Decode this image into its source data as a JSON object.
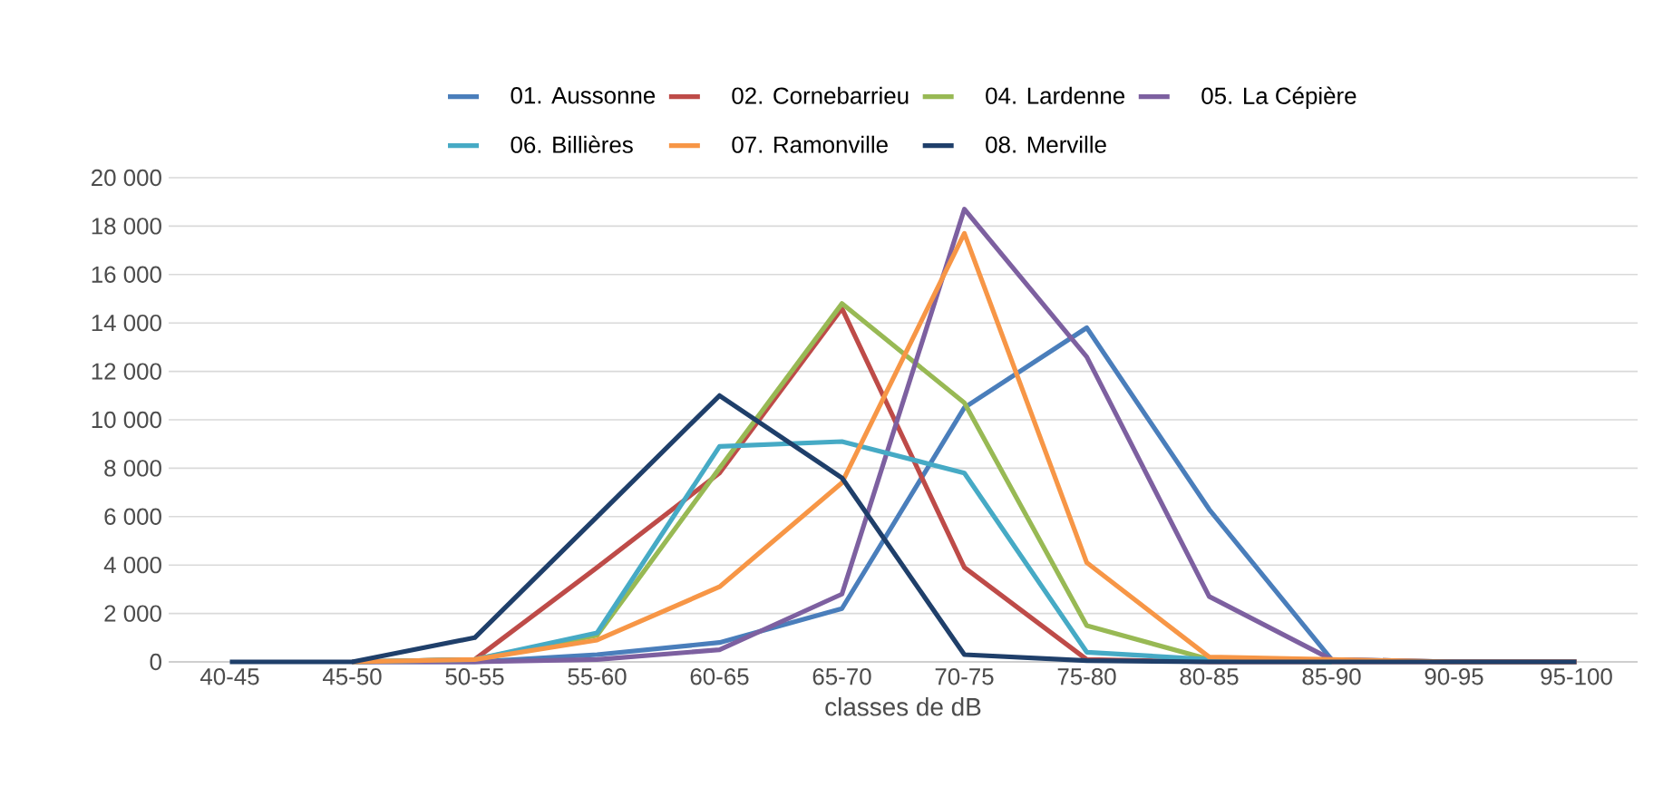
{
  "chart_data": {
    "type": "line",
    "xlabel": "classes de dB",
    "categories": [
      "40-45",
      "45-50",
      "50-55",
      "55-60",
      "60-65",
      "65-70",
      "70-75",
      "75-80",
      "80-85",
      "85-90",
      "90-95",
      "95-100"
    ],
    "ylim": [
      0,
      20000
    ],
    "yticks": [
      {
        "value": 0,
        "label": "0"
      },
      {
        "value": 2000,
        "label": "2 000"
      },
      {
        "value": 4000,
        "label": "4 000"
      },
      {
        "value": 6000,
        "label": "6 000"
      },
      {
        "value": 8000,
        "label": "8 000"
      },
      {
        "value": 10000,
        "label": "10 000"
      },
      {
        "value": 12000,
        "label": "12 000"
      },
      {
        "value": 14000,
        "label": "14 000"
      },
      {
        "value": 16000,
        "label": "16 000"
      },
      {
        "value": 18000,
        "label": "18 000"
      },
      {
        "value": 20000,
        "label": "20 000"
      }
    ],
    "grid": "y",
    "legend": "top",
    "marker": "none",
    "line_style": "solid",
    "series": [
      {
        "name": "01. Aussonne",
        "color": "#4a7ebb",
        "values": [
          null,
          0,
          0,
          300,
          800,
          2200,
          10500,
          13800,
          6300,
          100,
          0,
          0
        ]
      },
      {
        "name": "02. Cornebarrieu",
        "color": "#be4b48",
        "values": [
          null,
          0,
          100,
          3900,
          7800,
          14600,
          3900,
          100,
          0,
          0,
          0,
          0
        ]
      },
      {
        "name": "04. Lardenne",
        "color": "#98b954",
        "values": [
          null,
          0,
          100,
          1100,
          8000,
          14800,
          10700,
          1500,
          100,
          0,
          null,
          null
        ]
      },
      {
        "name": "05. La Cépière",
        "color": "#7d60a0",
        "values": [
          null,
          0,
          0,
          100,
          500,
          2800,
          18700,
          12600,
          2700,
          100,
          0,
          0
        ]
      },
      {
        "name": "06. Billières",
        "color": "#46aac5",
        "values": [
          null,
          0,
          100,
          1200,
          8900,
          9100,
          7800,
          400,
          100,
          0,
          null,
          null
        ]
      },
      {
        "name": "07. Ramonville",
        "color": "#f79646",
        "values": [
          null,
          0,
          100,
          900,
          3100,
          7400,
          17700,
          4100,
          200,
          100,
          0,
          0
        ]
      },
      {
        "name": "08. Merville",
        "color": "#1f3f6a",
        "values": [
          0,
          0,
          1000,
          6000,
          11000,
          7600,
          300,
          50,
          0,
          0,
          0,
          0
        ]
      }
    ]
  }
}
